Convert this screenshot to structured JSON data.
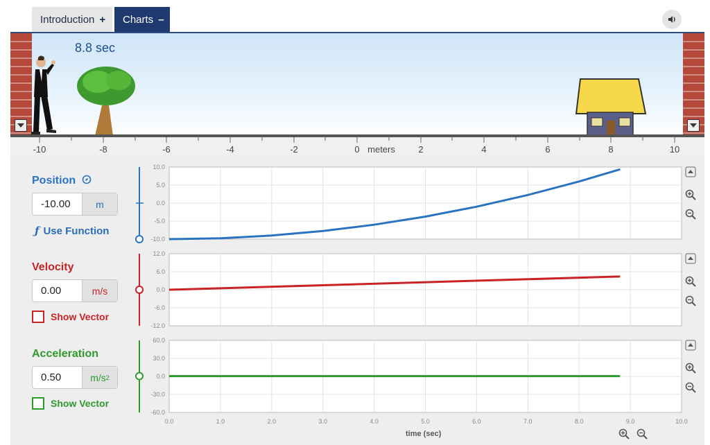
{
  "tabs": [
    {
      "label": "Introduction",
      "sign": "+"
    },
    {
      "label": "Charts",
      "sign": "–"
    }
  ],
  "scene": {
    "timer": "8.8 sec",
    "ruler_ticks": [
      "-10",
      "-8",
      "-6",
      "-4",
      "-2",
      "0",
      "meters",
      "2",
      "4",
      "6",
      "8",
      "10"
    ]
  },
  "colors": {
    "position": "#2a73c0",
    "velocity": "#c82325",
    "acceleration": "#2e9a2e"
  },
  "position": {
    "title": "Position",
    "value": "-10.00",
    "unit": "m",
    "use_function": "Use Function"
  },
  "velocity": {
    "title": "Velocity",
    "value": "0.00",
    "unit": "m/s",
    "show_vector": "Show Vector"
  },
  "acceleration": {
    "title": "Acceleration",
    "value": "0.50",
    "unit": "m/s",
    "unit_sup": "2",
    "show_vector": "Show Vector"
  },
  "chart_data": [
    {
      "type": "line",
      "title": "",
      "xlabel": "",
      "ylabel": "",
      "xlim": [
        0,
        10
      ],
      "ylim": [
        -10,
        10
      ],
      "yticks": [
        "10.0",
        "5.0",
        "0.0",
        "-5.0",
        "-10.0"
      ],
      "series": [
        {
          "x": [
            0,
            1,
            2,
            3,
            4,
            5,
            6,
            7,
            8,
            8.8
          ],
          "values": [
            -10,
            -9.75,
            -9,
            -7.75,
            -6,
            -3.75,
            -1,
            2.25,
            6,
            9.36
          ]
        }
      ]
    },
    {
      "type": "line",
      "title": "",
      "xlabel": "",
      "ylabel": "",
      "xlim": [
        0,
        10
      ],
      "ylim": [
        -12,
        12
      ],
      "yticks": [
        "12.0",
        "6.0",
        "0.0",
        "-6.0",
        "-12.0"
      ],
      "series": [
        {
          "x": [
            0,
            8.8
          ],
          "values": [
            0,
            4.4
          ]
        }
      ]
    },
    {
      "type": "line",
      "title": "",
      "xlabel": "time (sec)",
      "ylabel": "",
      "xlim": [
        0,
        10
      ],
      "ylim": [
        -60,
        60
      ],
      "yticks": [
        "60.0",
        "30.0",
        "0.0",
        "-30.0",
        "-60.0"
      ],
      "xticks": [
        "0.0",
        "1.0",
        "2.0",
        "3.0",
        "4.0",
        "5.0",
        "6.0",
        "7.0",
        "8.0",
        "9.0",
        "10.0"
      ],
      "series": [
        {
          "x": [
            0,
            8.8
          ],
          "values": [
            0.5,
            0.5
          ]
        }
      ]
    }
  ]
}
